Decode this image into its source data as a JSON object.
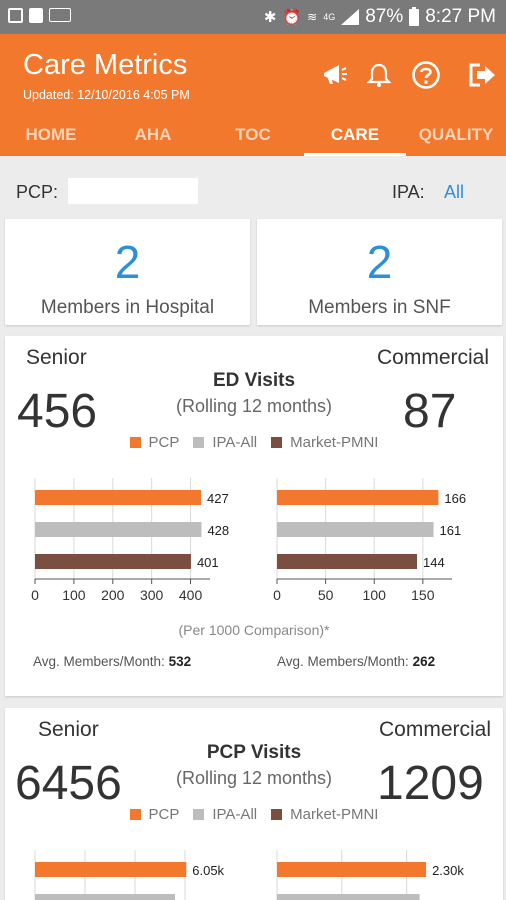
{
  "status_bar": {
    "battery": "87%",
    "time": "8:27 PM",
    "network": "4G"
  },
  "header": {
    "title": "Care Metrics",
    "updated": "Updated: 12/10/2016 4:05 PM",
    "tabs": [
      {
        "label": "HOME",
        "active": false
      },
      {
        "label": "AHA",
        "active": false
      },
      {
        "label": "TOC",
        "active": false
      },
      {
        "label": "CARE",
        "active": true
      },
      {
        "label": "QUALITY",
        "active": false
      }
    ]
  },
  "filter": {
    "pcp_label": "PCP:",
    "pcp_value": "",
    "ipa_label": "IPA:",
    "ipa_value": "All"
  },
  "stats": [
    {
      "value": "2",
      "label": "Members in Hospital"
    },
    {
      "value": "2",
      "label": "Members in SNF"
    }
  ],
  "legend": [
    {
      "name": "PCP",
      "color": "#f1782c"
    },
    {
      "name": "IPA-All",
      "color": "#bdbdbd"
    },
    {
      "name": "Market-PMNI",
      "color": "#7b4e42"
    }
  ],
  "colors": {
    "accent": "#f1782c",
    "link": "#2d8fd5"
  },
  "metrics": [
    {
      "title": "ED Visits",
      "subtitle": "(Rolling 12 months)",
      "senior_label": "Senior",
      "senior_value": "456",
      "commercial_label": "Commercial",
      "commercial_value": "87",
      "note": "(Per 1000 Comparison)*",
      "avg_senior_label": "Avg. Members/Month:",
      "avg_senior_value": "532",
      "avg_commercial_label": "Avg. Members/Month:",
      "avg_commercial_value": "262"
    },
    {
      "title": "PCP Visits",
      "subtitle": "(Rolling 12 months)",
      "senior_label": "Senior",
      "senior_value": "6456",
      "commercial_label": "Commercial",
      "commercial_value": "1209"
    }
  ],
  "chart_data": [
    {
      "type": "bar",
      "orientation": "horizontal",
      "series_names": [
        "PCP",
        "IPA-All",
        "Market-PMNI"
      ],
      "values": [
        427,
        428,
        401
      ],
      "value_labels": [
        "427",
        "428",
        "401"
      ],
      "xlim": [
        0,
        450
      ],
      "ticks": [
        "0",
        "100",
        "200",
        "300",
        "400"
      ],
      "tick_values": [
        0,
        100,
        200,
        300,
        400
      ]
    },
    {
      "type": "bar",
      "orientation": "horizontal",
      "series_names": [
        "PCP",
        "IPA-All",
        "Market-PMNI"
      ],
      "values": [
        166,
        161,
        144
      ],
      "value_labels": [
        "166",
        "161",
        "144"
      ],
      "xlim": [
        0,
        180
      ],
      "ticks": [
        "0",
        "50",
        "100",
        "150"
      ],
      "tick_values": [
        0,
        50,
        100,
        150
      ]
    },
    {
      "type": "bar",
      "orientation": "horizontal",
      "series_names": [
        "PCP",
        "IPA-All"
      ],
      "values": [
        6050,
        5600
      ],
      "value_labels": [
        "6.05k",
        ""
      ],
      "xlim": [
        0,
        7000
      ],
      "ticks": [],
      "tick_values": [
        0,
        2000,
        4000,
        6000
      ]
    },
    {
      "type": "bar",
      "orientation": "horizontal",
      "series_names": [
        "PCP",
        "IPA-All"
      ],
      "values": [
        2300,
        2200
      ],
      "value_labels": [
        "2.30k",
        ""
      ],
      "xlim": [
        0,
        2700
      ],
      "ticks": [],
      "tick_values": [
        0,
        1000,
        2000
      ]
    }
  ]
}
